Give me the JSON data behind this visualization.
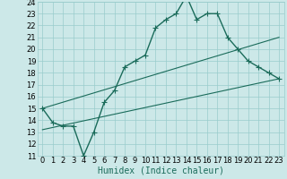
{
  "xlabel": "Humidex (Indice chaleur)",
  "xlim": [
    -0.5,
    23.5
  ],
  "ylim": [
    11,
    24
  ],
  "xticks": [
    0,
    1,
    2,
    3,
    4,
    5,
    6,
    7,
    8,
    9,
    10,
    11,
    12,
    13,
    14,
    15,
    16,
    17,
    18,
    19,
    20,
    21,
    22,
    23
  ],
  "yticks": [
    11,
    12,
    13,
    14,
    15,
    16,
    17,
    18,
    19,
    20,
    21,
    22,
    23,
    24
  ],
  "bg_color": "#cce8e8",
  "grid_color": "#99cccc",
  "line_color": "#1a6b5a",
  "main_line_x": [
    0,
    1,
    2,
    3,
    4,
    5,
    6,
    7,
    8,
    9,
    10,
    11,
    12,
    13,
    14,
    15,
    16,
    17,
    18,
    19,
    20,
    21,
    22,
    23
  ],
  "main_line_y": [
    15.0,
    13.8,
    13.5,
    13.5,
    11.0,
    13.0,
    15.5,
    16.5,
    18.5,
    19.0,
    19.5,
    21.8,
    22.5,
    23.0,
    24.5,
    22.5,
    23.0,
    23.0,
    21.0,
    20.0,
    19.0,
    18.5,
    18.0,
    17.5
  ],
  "upper_line_x": [
    0,
    23
  ],
  "upper_line_y": [
    15.0,
    21.0
  ],
  "lower_line_x": [
    0,
    23
  ],
  "lower_line_y": [
    13.2,
    17.5
  ],
  "fontsize_axis": 7,
  "fontsize_tick": 6
}
